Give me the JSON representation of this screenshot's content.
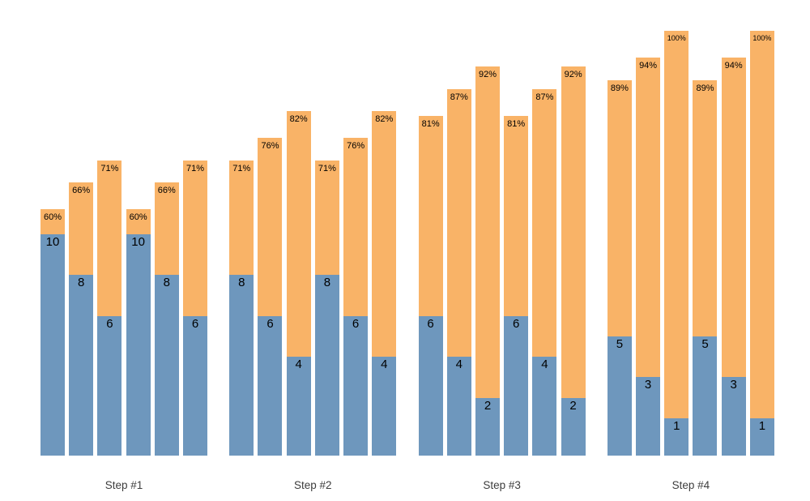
{
  "chart_data": {
    "type": "bar",
    "subtype": "grouped-stacked",
    "title": "",
    "legend": null,
    "axes_visible": false,
    "grid": false,
    "colors": {
      "bottom_segment": "#6e97bd",
      "top_segment": "#f9b367",
      "value_label": "#000000",
      "pct_label": "#000000",
      "axis_label": "#3d3d3d",
      "background": "#ffffff"
    },
    "groups": [
      {
        "label": "Step #1",
        "bars": [
          {
            "value": 10,
            "value_label": "10",
            "pct": 60,
            "pct_label": "60%"
          },
          {
            "value": 8,
            "value_label": "8",
            "pct": 66,
            "pct_label": "66%"
          },
          {
            "value": 6,
            "value_label": "6",
            "pct": 71,
            "pct_label": "71%"
          },
          {
            "value": 10,
            "value_label": "10",
            "pct": 60,
            "pct_label": "60%"
          },
          {
            "value": 8,
            "value_label": "8",
            "pct": 66,
            "pct_label": "66%"
          },
          {
            "value": 6,
            "value_label": "6",
            "pct": 71,
            "pct_label": "71%"
          }
        ]
      },
      {
        "label": "Step #2",
        "bars": [
          {
            "value": 8,
            "value_label": "8",
            "pct": 71,
            "pct_label": "71%"
          },
          {
            "value": 6,
            "value_label": "6",
            "pct": 76,
            "pct_label": "76%"
          },
          {
            "value": 4,
            "value_label": "4",
            "pct": 82,
            "pct_label": "82%"
          },
          {
            "value": 8,
            "value_label": "8",
            "pct": 71,
            "pct_label": "71%"
          },
          {
            "value": 6,
            "value_label": "6",
            "pct": 76,
            "pct_label": "76%"
          },
          {
            "value": 4,
            "value_label": "4",
            "pct": 82,
            "pct_label": "82%"
          }
        ]
      },
      {
        "label": "Step #3",
        "bars": [
          {
            "value": 6,
            "value_label": "6",
            "pct": 81,
            "pct_label": "81%"
          },
          {
            "value": 4,
            "value_label": "4",
            "pct": 87,
            "pct_label": "87%"
          },
          {
            "value": 2,
            "value_label": "2",
            "pct": 92,
            "pct_label": "92%"
          },
          {
            "value": 6,
            "value_label": "6",
            "pct": 81,
            "pct_label": "81%"
          },
          {
            "value": 4,
            "value_label": "4",
            "pct": 87,
            "pct_label": "87%"
          },
          {
            "value": 2,
            "value_label": "2",
            "pct": 92,
            "pct_label": "92%"
          }
        ]
      },
      {
        "label": "Step #4",
        "bars": [
          {
            "value": 5,
            "value_label": "5",
            "pct": 89,
            "pct_label": "89%"
          },
          {
            "value": 3,
            "value_label": "3",
            "pct": 94,
            "pct_label": "94%"
          },
          {
            "value": 1,
            "value_label": "1",
            "pct": 100,
            "pct_label": "100%"
          },
          {
            "value": 5,
            "value_label": "5",
            "pct": 89,
            "pct_label": "89%"
          },
          {
            "value": 3,
            "value_label": "3",
            "pct": 94,
            "pct_label": "94%"
          },
          {
            "value": 1,
            "value_label": "1",
            "pct": 100,
            "pct_label": "100%"
          }
        ]
      }
    ]
  }
}
